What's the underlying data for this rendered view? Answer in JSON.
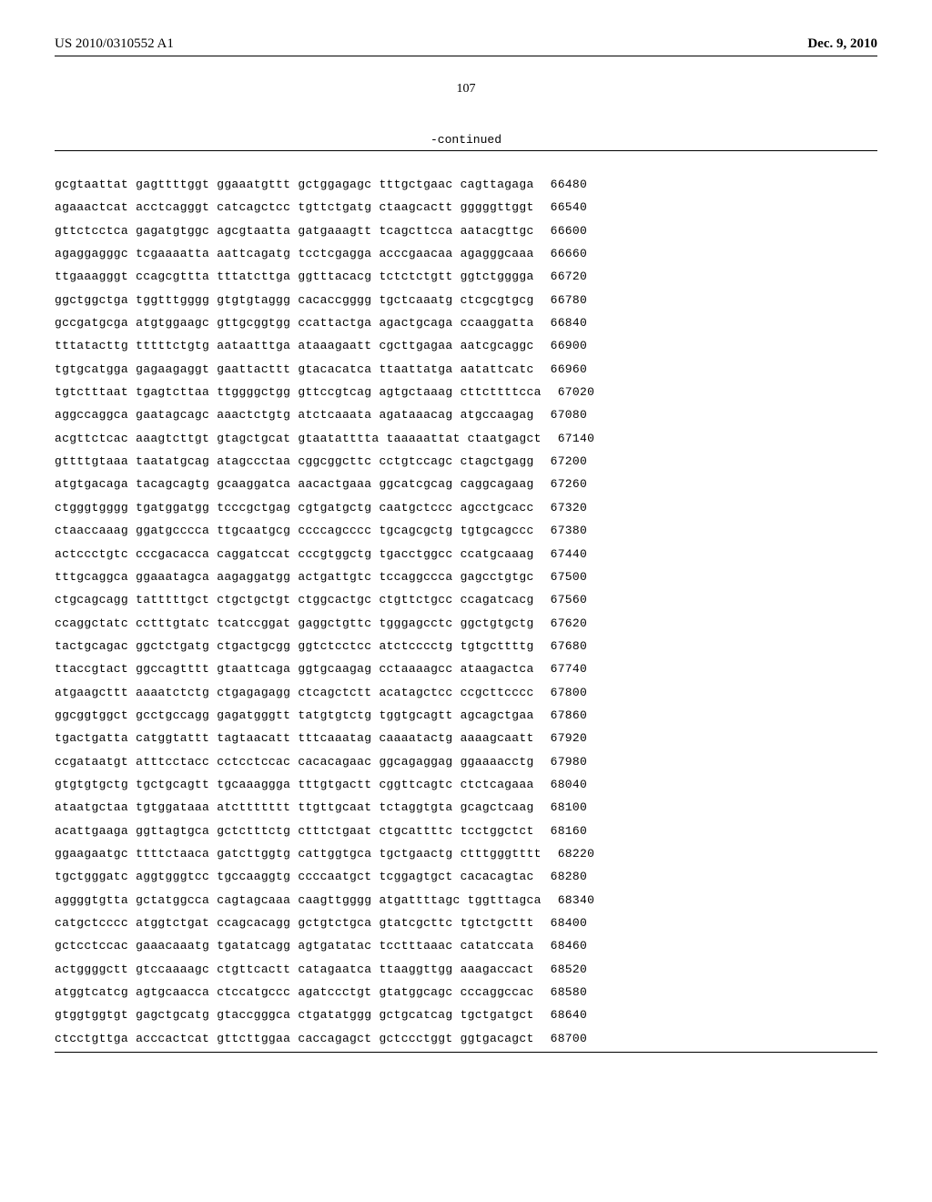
{
  "header": {
    "publication_number": "US 2010/0310552 A1",
    "publication_date": "Dec. 9, 2010"
  },
  "page_number": "107",
  "continued_label": "-continued",
  "sequence": {
    "font": "Courier New",
    "font_size": 13,
    "rows": [
      {
        "blocks": [
          "gcgtaattat",
          "gagttttggt",
          "ggaaatgttt",
          "gctggagagc",
          "tttgctgaac",
          "cagttagaga"
        ],
        "pos": "66480"
      },
      {
        "blocks": [
          "agaaactcat",
          "acctcagggt",
          "catcagctcc",
          "tgttctgatg",
          "ctaagcactt",
          "gggggttggt"
        ],
        "pos": "66540"
      },
      {
        "blocks": [
          "gttctcctca",
          "gagatgtggc",
          "agcgtaatta",
          "gatgaaagtt",
          "tcagcttcca",
          "aatacgttgc"
        ],
        "pos": "66600"
      },
      {
        "blocks": [
          "agaggagggc",
          "tcgaaaatta",
          "aattcagatg",
          "tcctcgagga",
          "acccgaacaa",
          "agagggcaaa"
        ],
        "pos": "66660"
      },
      {
        "blocks": [
          "ttgaaagggt",
          "ccagcgttta",
          "tttatcttga",
          "ggtttacacg",
          "tctctctgtt",
          "ggtctgggga"
        ],
        "pos": "66720"
      },
      {
        "blocks": [
          "ggctggctga",
          "tggtttgggg",
          "gtgtgtaggg",
          "cacaccgggg",
          "tgctcaaatg",
          "ctcgcgtgcg"
        ],
        "pos": "66780"
      },
      {
        "blocks": [
          "gccgatgcga",
          "atgtggaagc",
          "gttgcggtgg",
          "ccattactga",
          "agactgcaga",
          "ccaaggatta"
        ],
        "pos": "66840"
      },
      {
        "blocks": [
          "tttatacttg",
          "tttttctgtg",
          "aataatttga",
          "ataaagaatt",
          "cgcttgagaa",
          "aatcgcaggc"
        ],
        "pos": "66900"
      },
      {
        "blocks": [
          "tgtgcatgga",
          "gagaagaggt",
          "gaattacttt",
          "gtacacatca",
          "ttaattatga",
          "aatattcatc"
        ],
        "pos": "66960"
      },
      {
        "blocks": [
          "tgtctttaat",
          "tgagtcttaa",
          "ttggggctgg",
          "gttccgtcag",
          "agtgctaaag",
          "cttcttttcca"
        ],
        "pos": "67020"
      },
      {
        "blocks": [
          "aggccaggca",
          "gaatagcagc",
          "aaactctgtg",
          "atctcaaata",
          "agataaacag",
          "atgccaagag"
        ],
        "pos": "67080"
      },
      {
        "blocks": [
          "acgttctcac",
          "aaagtcttgt",
          "gtagctgcat",
          "gtaatatttta",
          "taaaaattat",
          "ctaatgagct"
        ],
        "pos": "67140"
      },
      {
        "blocks": [
          "gttttgtaaa",
          "taatatgcag",
          "atagccctaa",
          "cggcggcttc",
          "cctgtccagc",
          "ctagctgagg"
        ],
        "pos": "67200"
      },
      {
        "blocks": [
          "atgtgacaga",
          "tacagcagtg",
          "gcaaggatca",
          "aacactgaaa",
          "ggcatcgcag",
          "caggcagaag"
        ],
        "pos": "67260"
      },
      {
        "blocks": [
          "ctgggtgggg",
          "tgatggatgg",
          "tcccgctgag",
          "cgtgatgctg",
          "caatgctccc",
          "agcctgcacc"
        ],
        "pos": "67320"
      },
      {
        "blocks": [
          "ctaaccaaag",
          "ggatgcccca",
          "ttgcaatgcg",
          "ccccagcccc",
          "tgcagcgctg",
          "tgtgcagccc"
        ],
        "pos": "67380"
      },
      {
        "blocks": [
          "actccctgtc",
          "cccgacacca",
          "caggatccat",
          "cccgtggctg",
          "tgacctggcc",
          "ccatgcaaag"
        ],
        "pos": "67440"
      },
      {
        "blocks": [
          "tttgcaggca",
          "ggaaatagca",
          "aagaggatgg",
          "actgattgtc",
          "tccaggccca",
          "gagcctgtgc"
        ],
        "pos": "67500"
      },
      {
        "blocks": [
          "ctgcagcagg",
          "tatttttgct",
          "ctgctgctgt",
          "ctggcactgc",
          "ctgttctgcc",
          "ccagatcacg"
        ],
        "pos": "67560"
      },
      {
        "blocks": [
          "ccaggctatc",
          "cctttgtatc",
          "tcatccggat",
          "gaggctgttc",
          "tgggagcctc",
          "ggctgtgctg"
        ],
        "pos": "67620"
      },
      {
        "blocks": [
          "tactgcagac",
          "ggctctgatg",
          "ctgactgcgg",
          "ggtctcctcc",
          "atctcccctg",
          "tgtgcttttg"
        ],
        "pos": "67680"
      },
      {
        "blocks": [
          "ttaccgtact",
          "ggccagtttt",
          "gtaattcaga",
          "ggtgcaagag",
          "cctaaaagcc",
          "ataagactca"
        ],
        "pos": "67740"
      },
      {
        "blocks": [
          "atgaagcttt",
          "aaaatctctg",
          "ctgagagagg",
          "ctcagctctt",
          "acatagctcc",
          "ccgcttcccc"
        ],
        "pos": "67800"
      },
      {
        "blocks": [
          "ggcggtggct",
          "gcctgccagg",
          "gagatgggtt",
          "tatgtgtctg",
          "tggtgcagtt",
          "agcagctgaa"
        ],
        "pos": "67860"
      },
      {
        "blocks": [
          "tgactgatta",
          "catggtattt",
          "tagtaacatt",
          "tttcaaatag",
          "caaaatactg",
          "aaaagcaatt"
        ],
        "pos": "67920"
      },
      {
        "blocks": [
          "ccgataatgt",
          "atttcctacc",
          "cctcctccac",
          "cacacagaac",
          "ggcagaggag",
          "ggaaaacctg"
        ],
        "pos": "67980"
      },
      {
        "blocks": [
          "gtgtgtgctg",
          "tgctgcagtt",
          "tgcaaaggga",
          "tttgtgactt",
          "cggttcagtc",
          "ctctcagaaa"
        ],
        "pos": "68040"
      },
      {
        "blocks": [
          "ataatgctaa",
          "tgtggataaa",
          "atcttttttt",
          "ttgttgcaat",
          "tctaggtgta",
          "gcagctcaag"
        ],
        "pos": "68100"
      },
      {
        "blocks": [
          "acattgaaga",
          "ggttagtgca",
          "gctctttctg",
          "ctttctgaat",
          "ctgcattttc",
          "tcctggctct"
        ],
        "pos": "68160"
      },
      {
        "blocks": [
          "ggaagaatgc",
          "ttttctaaca",
          "gatcttggtg",
          "cattggtgca",
          "tgctgaactg",
          "ctttgggtttt"
        ],
        "pos": "68220"
      },
      {
        "blocks": [
          "tgctgggatc",
          "aggtgggtcc",
          "tgccaaggtg",
          "ccccaatgct",
          "tcggagtgct",
          "cacacagtac"
        ],
        "pos": "68280"
      },
      {
        "blocks": [
          "aggggtgtta",
          "gctatggcca",
          "cagtagcaaa",
          "caagttgggg",
          "atgattttagc",
          "tggtttagca"
        ],
        "pos": "68340"
      },
      {
        "blocks": [
          "catgctcccc",
          "atggtctgat",
          "ccagcacagg",
          "gctgtctgca",
          "gtatcgcttc",
          "tgtctgcttt"
        ],
        "pos": "68400"
      },
      {
        "blocks": [
          "gctcctccac",
          "gaaacaaatg",
          "tgatatcagg",
          "agtgatatac",
          "tcctttaaac",
          "catatccata"
        ],
        "pos": "68460"
      },
      {
        "blocks": [
          "actggggctt",
          "gtccaaaagc",
          "ctgttcactt",
          "catagaatca",
          "ttaaggttgg",
          "aaagaccact"
        ],
        "pos": "68520"
      },
      {
        "blocks": [
          "atggtcatcg",
          "agtgcaacca",
          "ctccatgccc",
          "agatccctgt",
          "gtatggcagc",
          "cccaggccac"
        ],
        "pos": "68580"
      },
      {
        "blocks": [
          "gtggtggtgt",
          "gagctgcatg",
          "gtaccgggca",
          "ctgatatggg",
          "gctgcatcag",
          "tgctgatgct"
        ],
        "pos": "68640"
      },
      {
        "blocks": [
          "ctcctgttga",
          "acccactcat",
          "gttcttggaa",
          "caccagagct",
          "gctccctggt",
          "ggtgacagct"
        ],
        "pos": "68700"
      }
    ]
  }
}
